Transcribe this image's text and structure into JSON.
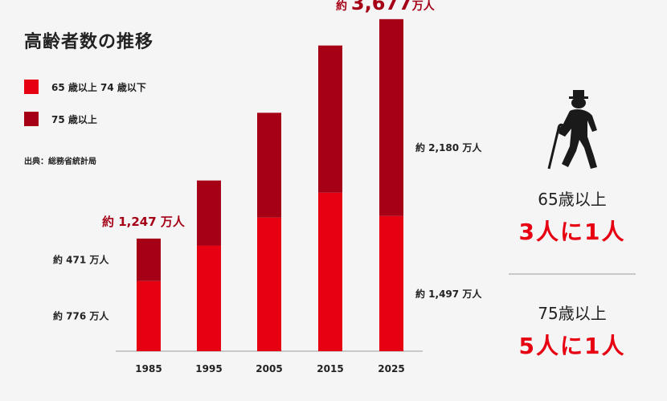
{
  "title": "高齢者数の推移",
  "legend": [
    {
      "label": "65 歳以上 74 歳以下",
      "color": "#e60012"
    },
    {
      "label": "75 歳以上",
      "color": "#a50016"
    }
  ],
  "source": "出典：総務省統計局",
  "chart_data": {
    "type": "bar",
    "stacked": true,
    "categories": [
      "1985",
      "1995",
      "2005",
      "2015",
      "2025"
    ],
    "series": [
      {
        "name": "65 歳以上 74 歳以下",
        "color": "#e60012",
        "values": [
          776,
          1170,
          1480,
          1755,
          1497
        ]
      },
      {
        "name": "75 歳以上",
        "color": "#a50016",
        "values": [
          471,
          720,
          1160,
          1630,
          2180
        ]
      }
    ],
    "ylim": [
      0,
      3800
    ],
    "annotations": [
      {
        "text": "約 471 万人",
        "category": "1985",
        "side": "left",
        "series": "75 歳以上"
      },
      {
        "text": "約 776 万人",
        "category": "1985",
        "side": "left",
        "series": "65 歳以上 74 歳以下"
      },
      {
        "text": "約 1,247 万人",
        "category": "1985",
        "position": "above",
        "color": "#a50016"
      },
      {
        "text_prefix": "約",
        "text_main": "3,677",
        "text_suffix": "万人",
        "category": "2025",
        "position": "above",
        "color": "#a50016"
      },
      {
        "text": "約 2,180 万人",
        "category": "2025",
        "side": "right",
        "series": "75 歳以上"
      },
      {
        "text": "約 1,497 万人",
        "category": "2025",
        "side": "right",
        "series": "65 歳以上 74 歳以下"
      }
    ],
    "grid": false,
    "legend_position": "top-left"
  },
  "right_panel": {
    "icon": "elderly-person-with-cane-icon",
    "stat1_label": "65歳以上",
    "stat1_value": "3人に1人",
    "stat2_label": "75歳以上",
    "stat2_value": "5人に1人",
    "accent_color": "#e60012"
  }
}
